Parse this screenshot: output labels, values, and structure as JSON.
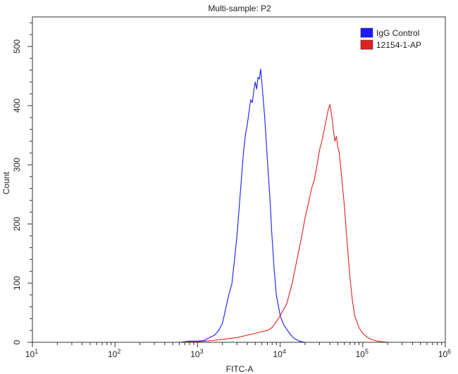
{
  "chart_data": {
    "type": "line",
    "title": "Multi-sample: P2",
    "xlabel": "FITC-A",
    "ylabel": "Count",
    "x_scale": "log10",
    "xlim": [
      10,
      1000000
    ],
    "ylim": [
      0,
      550
    ],
    "x_ticks": [
      {
        "value": 10,
        "base": "10",
        "exp": "1"
      },
      {
        "value": 100,
        "base": "10",
        "exp": "2"
      },
      {
        "value": 1000,
        "base": "10",
        "exp": "3"
      },
      {
        "value": 10000,
        "base": "10",
        "exp": "4"
      },
      {
        "value": 100000,
        "base": "10",
        "exp": "5"
      },
      {
        "value": 1000000,
        "base": "10",
        "exp": "6"
      }
    ],
    "y_ticks": [
      {
        "value": 0,
        "label": "0"
      },
      {
        "value": 100,
        "label": "100"
      },
      {
        "value": 200,
        "label": "200"
      },
      {
        "value": 300,
        "label": "300"
      },
      {
        "value": 400,
        "label": "400"
      },
      {
        "value": 500,
        "label": "500"
      }
    ],
    "grid": false,
    "legend_position": "top-right",
    "series": [
      {
        "name": "IgG Control",
        "color": "#1a1aff",
        "points": [
          [
            10,
            0
          ],
          [
            200,
            0
          ],
          [
            400,
            0
          ],
          [
            600,
            0
          ],
          [
            800,
            2
          ],
          [
            1000,
            2
          ],
          [
            1200,
            3
          ],
          [
            1400,
            8
          ],
          [
            1600,
            12
          ],
          [
            1800,
            20
          ],
          [
            2000,
            32
          ],
          [
            2200,
            58
          ],
          [
            2400,
            82
          ],
          [
            2600,
            98
          ],
          [
            2800,
            140
          ],
          [
            3000,
            180
          ],
          [
            3200,
            230
          ],
          [
            3400,
            278
          ],
          [
            3600,
            322
          ],
          [
            3800,
            352
          ],
          [
            4000,
            368
          ],
          [
            4200,
            390
          ],
          [
            4400,
            410
          ],
          [
            4600,
            405
          ],
          [
            4800,
            425
          ],
          [
            5000,
            440
          ],
          [
            5200,
            428
          ],
          [
            5400,
            448
          ],
          [
            5600,
            445
          ],
          [
            5800,
            462
          ],
          [
            6000,
            440
          ],
          [
            6200,
            415
          ],
          [
            6500,
            380
          ],
          [
            7000,
            310
          ],
          [
            7500,
            245
          ],
          [
            8000,
            175
          ],
          [
            8500,
            120
          ],
          [
            9000,
            80
          ],
          [
            9500,
            62
          ],
          [
            10000,
            45
          ],
          [
            11000,
            30
          ],
          [
            12000,
            22
          ],
          [
            13500,
            12
          ],
          [
            15000,
            6
          ],
          [
            17000,
            2
          ],
          [
            20000,
            0
          ],
          [
            1000000,
            0
          ]
        ]
      },
      {
        "name": "12154-1-AP",
        "color": "#e02020",
        "points": [
          [
            10,
            0
          ],
          [
            300,
            0
          ],
          [
            600,
            0
          ],
          [
            1000,
            1
          ],
          [
            1500,
            3
          ],
          [
            2000,
            5
          ],
          [
            3000,
            8
          ],
          [
            4000,
            12
          ],
          [
            5000,
            15
          ],
          [
            6000,
            18
          ],
          [
            7000,
            20
          ],
          [
            8000,
            25
          ],
          [
            9000,
            35
          ],
          [
            10000,
            45
          ],
          [
            12000,
            65
          ],
          [
            14000,
            100
          ],
          [
            16000,
            140
          ],
          [
            18000,
            175
          ],
          [
            20000,
            210
          ],
          [
            22000,
            235
          ],
          [
            24000,
            260
          ],
          [
            26000,
            275
          ],
          [
            28000,
            300
          ],
          [
            30000,
            325
          ],
          [
            32000,
            340
          ],
          [
            34000,
            358
          ],
          [
            36000,
            375
          ],
          [
            38000,
            392
          ],
          [
            40000,
            402
          ],
          [
            42000,
            385
          ],
          [
            44000,
            360
          ],
          [
            46000,
            340
          ],
          [
            48000,
            348
          ],
          [
            50000,
            330
          ],
          [
            52000,
            320
          ],
          [
            55000,
            285
          ],
          [
            60000,
            230
          ],
          [
            65000,
            165
          ],
          [
            70000,
            110
          ],
          [
            75000,
            70
          ],
          [
            80000,
            45
          ],
          [
            90000,
            25
          ],
          [
            100000,
            15
          ],
          [
            120000,
            6
          ],
          [
            150000,
            2
          ],
          [
            200000,
            0
          ],
          [
            1000000,
            0
          ]
        ]
      }
    ]
  }
}
